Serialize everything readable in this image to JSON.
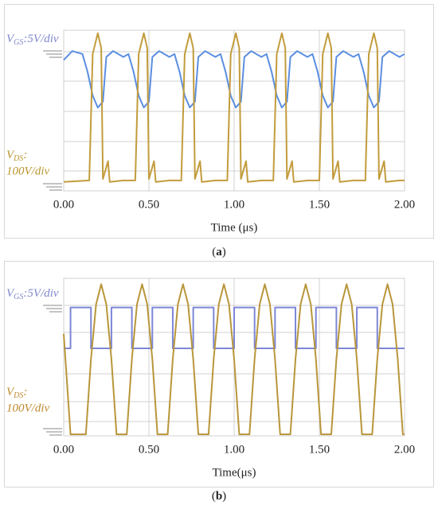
{
  "chart_data": [
    {
      "type": "line",
      "caption": "a",
      "xlabel": "Time (μs)",
      "xlim": [
        0,
        2
      ],
      "ylim": [
        0,
        5.4
      ],
      "xticks": [
        {
          "value": 0,
          "label": "0.00"
        },
        {
          "value": 0.5,
          "label": "0.50"
        },
        {
          "value": 1,
          "label": "1.00"
        },
        {
          "value": 1.5,
          "label": "1.50"
        },
        {
          "value": 2,
          "label": "2.00"
        }
      ],
      "grid": true,
      "series": [
        {
          "name": "V",
          "name_subscript": "GS",
          "scale_label": [
            ":5V/div"
          ],
          "color": "#5b8ee0",
          "label_color": "#7f88cc",
          "x": [
            0,
            0.05,
            0.11,
            0.14,
            0.17,
            0.2,
            0.23,
            0.25,
            0.29,
            0.35,
            0.38,
            0.41,
            0.44,
            0.47,
            0.5,
            0.52,
            0.56,
            0.62,
            0.65,
            0.68,
            0.71,
            0.74,
            0.77,
            0.79,
            0.83,
            0.89,
            0.92,
            0.95,
            0.98,
            1.01,
            1.04,
            1.06,
            1.1,
            1.16,
            1.19,
            1.22,
            1.25,
            1.28,
            1.31,
            1.33,
            1.37,
            1.43,
            1.46,
            1.49,
            1.52,
            1.55,
            1.58,
            1.6,
            1.64,
            1.7,
            1.73,
            1.76,
            1.79,
            1.82,
            1.85,
            1.87,
            1.91,
            1.97,
            2.0
          ],
          "values": [
            4.4,
            4.7,
            4.6,
            4.0,
            3.2,
            2.8,
            3.0,
            4.5,
            4.7,
            4.5,
            4.6,
            4.0,
            3.2,
            2.8,
            3.0,
            4.5,
            4.7,
            4.5,
            4.6,
            4.0,
            3.2,
            2.8,
            3.0,
            4.5,
            4.7,
            4.5,
            4.6,
            4.0,
            3.2,
            2.8,
            3.0,
            4.5,
            4.7,
            4.5,
            4.6,
            4.0,
            3.2,
            2.8,
            3.0,
            4.5,
            4.7,
            4.5,
            4.6,
            4.0,
            3.2,
            2.8,
            3.0,
            4.5,
            4.7,
            4.5,
            4.6,
            4.0,
            3.2,
            2.8,
            3.0,
            4.5,
            4.7,
            4.5,
            4.6
          ]
        },
        {
          "name": "V",
          "name_subscript": "DS",
          "scale_label": [
            ":",
            "100V/div"
          ],
          "color": "#c29c3c",
          "label_color": "#b8962e",
          "x": [
            0,
            0.15,
            0.17,
            0.2,
            0.22,
            0.23,
            0.26,
            0.27,
            0.35,
            0.42,
            0.44,
            0.47,
            0.49,
            0.5,
            0.53,
            0.54,
            0.62,
            0.69,
            0.71,
            0.74,
            0.76,
            0.77,
            0.8,
            0.81,
            0.89,
            0.96,
            0.98,
            1.01,
            1.03,
            1.04,
            1.07,
            1.08,
            1.16,
            1.23,
            1.25,
            1.28,
            1.3,
            1.31,
            1.34,
            1.35,
            1.43,
            1.5,
            1.52,
            1.55,
            1.57,
            1.58,
            1.61,
            1.62,
            1.7,
            1.77,
            1.79,
            1.82,
            1.84,
            1.85,
            1.88,
            1.89,
            1.97,
            2.0
          ],
          "values": [
            0.3,
            0.35,
            4.6,
            5.3,
            4.8,
            0.4,
            1.0,
            0.3,
            0.35,
            0.35,
            4.6,
            5.3,
            4.8,
            0.4,
            1.0,
            0.3,
            0.35,
            0.35,
            4.6,
            5.3,
            4.8,
            0.4,
            1.0,
            0.3,
            0.35,
            0.35,
            4.6,
            5.3,
            4.8,
            0.4,
            1.0,
            0.3,
            0.35,
            0.35,
            4.6,
            5.3,
            4.8,
            0.4,
            1.0,
            0.3,
            0.35,
            0.35,
            4.6,
            5.3,
            4.8,
            0.4,
            1.0,
            0.3,
            0.35,
            0.35,
            4.6,
            5.3,
            4.8,
            0.4,
            1.0,
            0.3,
            0.35,
            0.35
          ]
        }
      ]
    },
    {
      "type": "line",
      "caption": "b",
      "xlabel": "Time(μs)",
      "xlim": [
        0,
        2
      ],
      "ylim": [
        0,
        5.4
      ],
      "xticks": [
        {
          "value": 0,
          "label": "0.00"
        },
        {
          "value": 0.5,
          "label": "0.50"
        },
        {
          "value": 1,
          "label": "1.00"
        },
        {
          "value": 1.5,
          "label": "1.50"
        },
        {
          "value": 2,
          "label": "2.00"
        }
      ],
      "grid": true,
      "series": [
        {
          "name": "V",
          "name_subscript": "GS",
          "scale_label": [
            ":5V/div"
          ],
          "color": "#7d86d6",
          "label_color": "#7f88cc",
          "x": [
            0,
            0.04,
            0.04,
            0.16,
            0.16,
            0.28,
            0.28,
            0.4,
            0.4,
            0.52,
            0.52,
            0.64,
            0.64,
            0.76,
            0.76,
            0.88,
            0.88,
            1.0,
            1.0,
            1.12,
            1.12,
            1.24,
            1.24,
            1.36,
            1.36,
            1.48,
            1.48,
            1.6,
            1.6,
            1.72,
            1.72,
            1.84,
            1.84,
            2.0
          ],
          "values": [
            3.0,
            3.0,
            4.4,
            4.4,
            3.0,
            3.0,
            4.4,
            4.4,
            3.0,
            3.0,
            4.4,
            4.4,
            3.0,
            3.0,
            4.4,
            4.4,
            3.0,
            3.0,
            4.4,
            4.4,
            3.0,
            3.0,
            4.4,
            4.4,
            3.0,
            3.0,
            4.4,
            4.4,
            3.0,
            3.0,
            4.4,
            4.4,
            3.0,
            3.0
          ]
        },
        {
          "name": "V",
          "name_subscript": "DS",
          "scale_label": [
            ":",
            "100V/div"
          ],
          "color": "#b8963a",
          "label_color": "#c08a2e",
          "x": [
            0,
            0.04,
            0.13,
            0.16,
            0.19,
            0.22,
            0.25,
            0.28,
            0.31,
            0.37,
            0.4,
            0.43,
            0.46,
            0.49,
            0.52,
            0.55,
            0.61,
            0.64,
            0.67,
            0.7,
            0.73,
            0.76,
            0.79,
            0.85,
            0.88,
            0.91,
            0.94,
            0.97,
            1.0,
            1.03,
            1.09,
            1.12,
            1.15,
            1.18,
            1.21,
            1.24,
            1.27,
            1.33,
            1.36,
            1.39,
            1.42,
            1.45,
            1.48,
            1.51,
            1.57,
            1.6,
            1.63,
            1.66,
            1.69,
            1.72,
            1.75,
            1.81,
            1.84,
            1.87,
            1.9,
            1.93,
            1.96,
            1.99,
            2.0
          ],
          "values": [
            3.5,
            0.05,
            0.05,
            2.63,
            4.51,
            5.2,
            4.51,
            2.63,
            0.05,
            0.05,
            2.63,
            4.51,
            5.2,
            4.51,
            2.63,
            0.05,
            0.05,
            2.63,
            4.51,
            5.2,
            4.51,
            2.63,
            0.05,
            0.05,
            2.63,
            4.51,
            5.2,
            4.51,
            2.63,
            0.05,
            0.05,
            2.63,
            4.51,
            5.2,
            4.51,
            2.63,
            0.05,
            0.05,
            2.63,
            4.51,
            5.2,
            4.51,
            2.63,
            0.05,
            0.05,
            2.63,
            4.51,
            5.2,
            4.51,
            2.63,
            0.05,
            0.05,
            2.63,
            4.51,
            5.2,
            4.51,
            2.63,
            0.05,
            0.05
          ]
        }
      ]
    }
  ]
}
